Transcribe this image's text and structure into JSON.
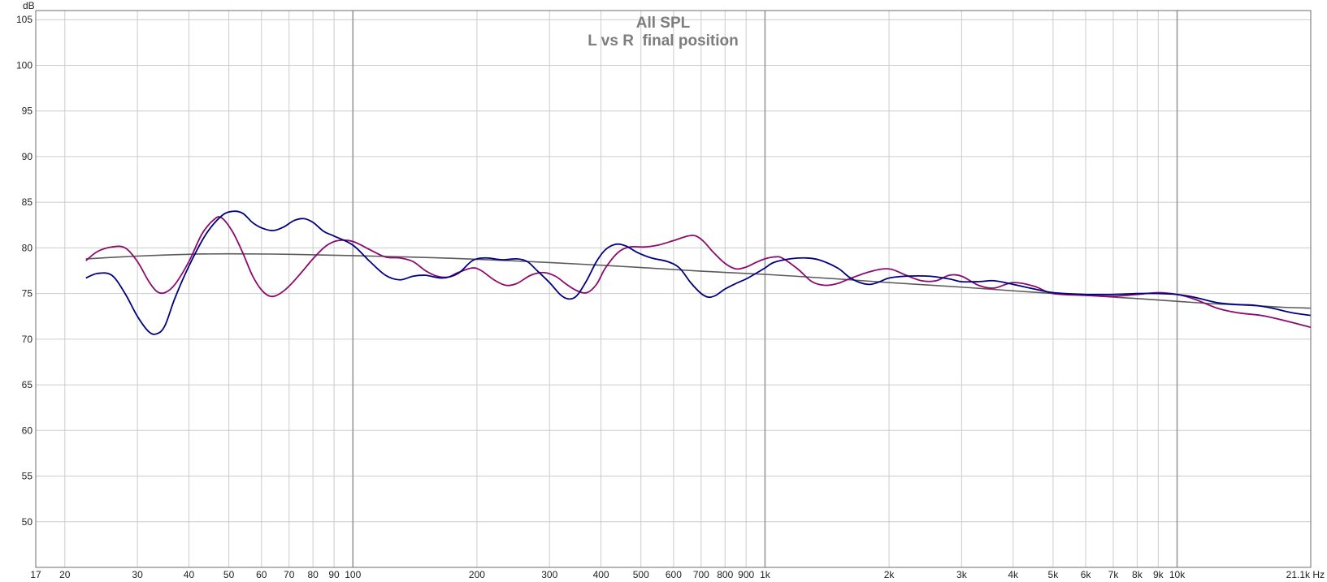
{
  "chart_data": {
    "type": "line",
    "title": "All SPL",
    "subtitle": "L vs R  final position",
    "ylabel": "dB",
    "xunit": "Hz",
    "xscale": "log",
    "xlim": [
      17,
      21100
    ],
    "ylim": [
      45,
      106
    ],
    "grid": true,
    "y_ticks": [
      105,
      100,
      95,
      90,
      85,
      80,
      75,
      70,
      65,
      60,
      55,
      50
    ],
    "x_ticks": [
      {
        "value": 17,
        "label": "17"
      },
      {
        "value": 20,
        "label": "20"
      },
      {
        "value": 30,
        "label": "30"
      },
      {
        "value": 40,
        "label": "40"
      },
      {
        "value": 50,
        "label": "50"
      },
      {
        "value": 60,
        "label": "60"
      },
      {
        "value": 70,
        "label": "70"
      },
      {
        "value": 80,
        "label": "80"
      },
      {
        "value": 90,
        "label": "90"
      },
      {
        "value": 100,
        "label": "100"
      },
      {
        "value": 200,
        "label": "200"
      },
      {
        "value": 300,
        "label": "300"
      },
      {
        "value": 400,
        "label": "400"
      },
      {
        "value": 500,
        "label": "500"
      },
      {
        "value": 600,
        "label": "600"
      },
      {
        "value": 700,
        "label": "700"
      },
      {
        "value": 800,
        "label": "800"
      },
      {
        "value": 900,
        "label": "900"
      },
      {
        "value": 1000,
        "label": "1k"
      },
      {
        "value": 2000,
        "label": "2k"
      },
      {
        "value": 3000,
        "label": "3k"
      },
      {
        "value": 4000,
        "label": "4k"
      },
      {
        "value": 5000,
        "label": "5k"
      },
      {
        "value": 6000,
        "label": "6k"
      },
      {
        "value": 7000,
        "label": "7k"
      },
      {
        "value": 8000,
        "label": "8k"
      },
      {
        "value": 9000,
        "label": "9k"
      },
      {
        "value": 10000,
        "label": "10k"
      },
      {
        "value": 21100,
        "label": "21.1k Hz"
      }
    ],
    "major_grid_x": [
      100,
      1000,
      10000
    ],
    "series": [
      {
        "color": "#000080",
        "points": [
          [
            22.5,
            76.7
          ],
          [
            24,
            77.2
          ],
          [
            26,
            77.0
          ],
          [
            28,
            75.0
          ],
          [
            30,
            72.5
          ],
          [
            32,
            70.8
          ],
          [
            33.5,
            70.6
          ],
          [
            35,
            71.5
          ],
          [
            37,
            74.5
          ],
          [
            40,
            78.0
          ],
          [
            44,
            81.5
          ],
          [
            48,
            83.5
          ],
          [
            51,
            84.0
          ],
          [
            54,
            83.8
          ],
          [
            57,
            82.8
          ],
          [
            60,
            82.2
          ],
          [
            64,
            81.9
          ],
          [
            68,
            82.3
          ],
          [
            72,
            83.0
          ],
          [
            76,
            83.2
          ],
          [
            80,
            82.8
          ],
          [
            85,
            81.8
          ],
          [
            90,
            81.3
          ],
          [
            100,
            80.3
          ],
          [
            110,
            78.5
          ],
          [
            120,
            77.0
          ],
          [
            130,
            76.5
          ],
          [
            140,
            76.9
          ],
          [
            150,
            77.0
          ],
          [
            165,
            76.7
          ],
          [
            180,
            77.2
          ],
          [
            195,
            78.6
          ],
          [
            210,
            78.9
          ],
          [
            230,
            78.7
          ],
          [
            250,
            78.8
          ],
          [
            265,
            78.5
          ],
          [
            280,
            77.5
          ],
          [
            300,
            76.2
          ],
          [
            320,
            74.8
          ],
          [
            335,
            74.4
          ],
          [
            350,
            74.8
          ],
          [
            370,
            76.5
          ],
          [
            390,
            78.5
          ],
          [
            410,
            79.8
          ],
          [
            435,
            80.4
          ],
          [
            460,
            80.2
          ],
          [
            490,
            79.5
          ],
          [
            530,
            78.9
          ],
          [
            580,
            78.5
          ],
          [
            620,
            77.8
          ],
          [
            660,
            76.2
          ],
          [
            700,
            75.0
          ],
          [
            730,
            74.6
          ],
          [
            760,
            74.8
          ],
          [
            800,
            75.5
          ],
          [
            850,
            76.1
          ],
          [
            900,
            76.6
          ],
          [
            950,
            77.2
          ],
          [
            1000,
            77.8
          ],
          [
            1050,
            78.4
          ],
          [
            1150,
            78.8
          ],
          [
            1250,
            78.9
          ],
          [
            1350,
            78.7
          ],
          [
            1500,
            77.8
          ],
          [
            1600,
            76.8
          ],
          [
            1700,
            76.2
          ],
          [
            1800,
            76.0
          ],
          [
            1900,
            76.3
          ],
          [
            2000,
            76.7
          ],
          [
            2200,
            76.9
          ],
          [
            2500,
            76.9
          ],
          [
            2800,
            76.6
          ],
          [
            3000,
            76.3
          ],
          [
            3300,
            76.3
          ],
          [
            3600,
            76.4
          ],
          [
            4000,
            76.0
          ],
          [
            4500,
            75.5
          ],
          [
            5000,
            75.1
          ],
          [
            6000,
            74.9
          ],
          [
            7000,
            74.9
          ],
          [
            8000,
            75.0
          ],
          [
            9000,
            75.0
          ],
          [
            10000,
            74.9
          ],
          [
            11000,
            74.6
          ],
          [
            12500,
            74.0
          ],
          [
            14000,
            73.8
          ],
          [
            15500,
            73.7
          ],
          [
            17000,
            73.4
          ],
          [
            19000,
            72.9
          ],
          [
            21100,
            72.6
          ]
        ]
      },
      {
        "color": "#8b0a6e",
        "points": [
          [
            22.5,
            78.6
          ],
          [
            24,
            79.6
          ],
          [
            26,
            80.1
          ],
          [
            28,
            80.0
          ],
          [
            30,
            78.5
          ],
          [
            32,
            76.3
          ],
          [
            33.5,
            75.2
          ],
          [
            35,
            75.1
          ],
          [
            37,
            76.0
          ],
          [
            40,
            78.5
          ],
          [
            43,
            81.5
          ],
          [
            46,
            83.1
          ],
          [
            48,
            83.3
          ],
          [
            51,
            81.8
          ],
          [
            54,
            79.5
          ],
          [
            57,
            77.0
          ],
          [
            60,
            75.4
          ],
          [
            63,
            74.7
          ],
          [
            66,
            74.9
          ],
          [
            70,
            75.8
          ],
          [
            75,
            77.3
          ],
          [
            80,
            78.8
          ],
          [
            86,
            80.2
          ],
          [
            92,
            80.8
          ],
          [
            100,
            80.7
          ],
          [
            110,
            79.8
          ],
          [
            120,
            79.0
          ],
          [
            130,
            78.9
          ],
          [
            140,
            78.5
          ],
          [
            150,
            77.5
          ],
          [
            160,
            76.9
          ],
          [
            170,
            76.8
          ],
          [
            180,
            77.3
          ],
          [
            195,
            77.8
          ],
          [
            205,
            77.5
          ],
          [
            220,
            76.5
          ],
          [
            235,
            75.9
          ],
          [
            250,
            76.1
          ],
          [
            270,
            77.0
          ],
          [
            290,
            77.3
          ],
          [
            310,
            76.9
          ],
          [
            330,
            76.0
          ],
          [
            350,
            75.3
          ],
          [
            370,
            75.1
          ],
          [
            390,
            76.0
          ],
          [
            410,
            77.8
          ],
          [
            440,
            79.5
          ],
          [
            470,
            80.1
          ],
          [
            510,
            80.1
          ],
          [
            550,
            80.3
          ],
          [
            600,
            80.8
          ],
          [
            650,
            81.3
          ],
          [
            680,
            81.3
          ],
          [
            710,
            80.7
          ],
          [
            750,
            79.5
          ],
          [
            800,
            78.3
          ],
          [
            850,
            77.7
          ],
          [
            900,
            77.9
          ],
          [
            950,
            78.4
          ],
          [
            1000,
            78.8
          ],
          [
            1050,
            79.0
          ],
          [
            1100,
            78.9
          ],
          [
            1200,
            77.7
          ],
          [
            1300,
            76.3
          ],
          [
            1400,
            75.9
          ],
          [
            1500,
            76.1
          ],
          [
            1600,
            76.6
          ],
          [
            1800,
            77.4
          ],
          [
            2000,
            77.7
          ],
          [
            2200,
            77.0
          ],
          [
            2400,
            76.4
          ],
          [
            2600,
            76.4
          ],
          [
            2800,
            77.0
          ],
          [
            3000,
            76.9
          ],
          [
            3300,
            75.9
          ],
          [
            3600,
            75.6
          ],
          [
            4000,
            76.2
          ],
          [
            4500,
            75.8
          ],
          [
            5000,
            75.0
          ],
          [
            6000,
            74.8
          ],
          [
            7000,
            74.7
          ],
          [
            8000,
            74.9
          ],
          [
            9000,
            75.1
          ],
          [
            10000,
            74.9
          ],
          [
            11000,
            74.4
          ],
          [
            12500,
            73.4
          ],
          [
            14000,
            72.9
          ],
          [
            16000,
            72.6
          ],
          [
            18000,
            72.1
          ],
          [
            21100,
            71.3
          ]
        ]
      },
      {
        "color": "#5a5a5a",
        "points": [
          [
            22.5,
            78.8
          ],
          [
            30,
            79.1
          ],
          [
            40,
            79.3
          ],
          [
            50,
            79.35
          ],
          [
            70,
            79.3
          ],
          [
            100,
            79.15
          ],
          [
            150,
            78.95
          ],
          [
            200,
            78.75
          ],
          [
            300,
            78.4
          ],
          [
            400,
            78.1
          ],
          [
            500,
            77.85
          ],
          [
            700,
            77.45
          ],
          [
            1000,
            77.1
          ],
          [
            1500,
            76.6
          ],
          [
            2000,
            76.2
          ],
          [
            3000,
            75.7
          ],
          [
            4000,
            75.3
          ],
          [
            5000,
            75.0
          ],
          [
            6000,
            74.8
          ],
          [
            7000,
            74.6
          ],
          [
            8000,
            74.45
          ],
          [
            10000,
            74.15
          ],
          [
            12000,
            73.9
          ],
          [
            15000,
            73.7
          ],
          [
            18000,
            73.5
          ],
          [
            21100,
            73.4
          ]
        ]
      }
    ]
  }
}
